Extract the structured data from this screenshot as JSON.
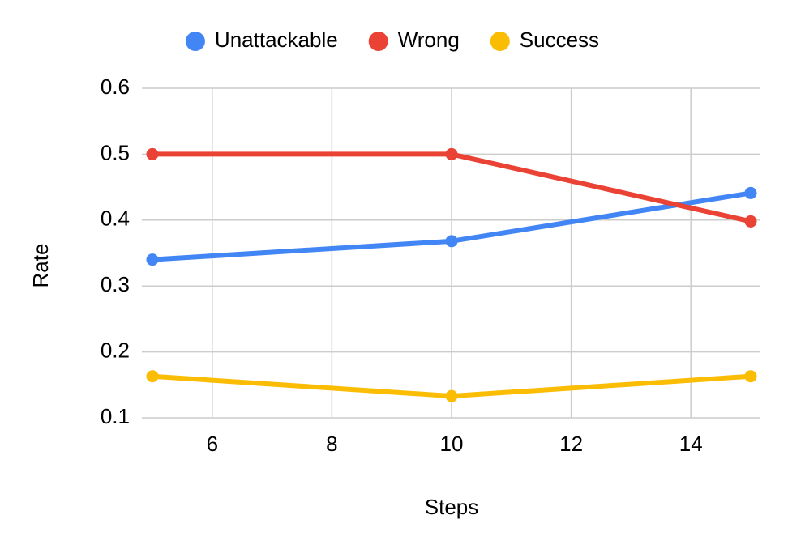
{
  "chart_data": {
    "type": "line",
    "x_label": "Steps",
    "y_label": "Rate",
    "x": [
      5,
      10,
      15
    ],
    "series": [
      {
        "name": "Unattackable",
        "color": "#4285f4",
        "values": [
          0.34,
          0.368,
          0.441
        ]
      },
      {
        "name": "Wrong",
        "color": "#ea4335",
        "values": [
          0.5,
          0.5,
          0.398
        ]
      },
      {
        "name": "Success",
        "color": "#fbbc04",
        "values": [
          0.163,
          0.133,
          0.163
        ]
      }
    ],
    "xlim": [
      5,
      15
    ],
    "xticks": [
      6,
      8,
      10,
      12,
      14
    ],
    "ylim": [
      0.1,
      0.6
    ],
    "yticks": [
      0.1,
      0.2,
      0.3,
      0.4,
      0.5,
      0.6
    ],
    "grid": true,
    "legend": "top"
  }
}
